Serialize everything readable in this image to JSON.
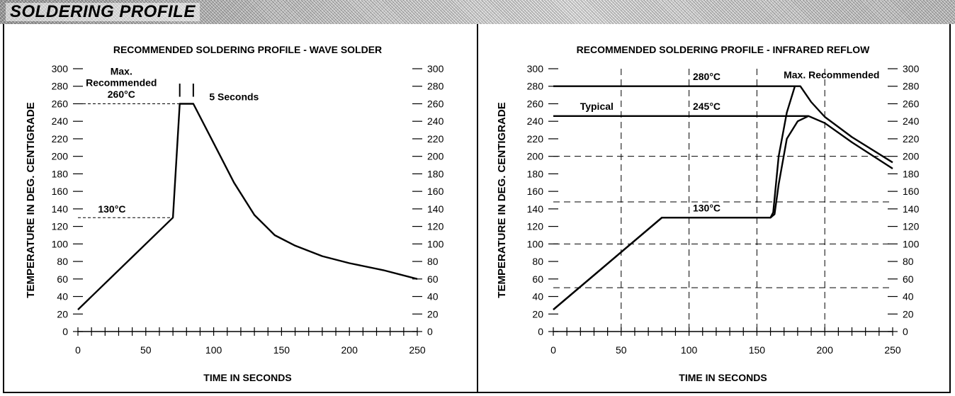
{
  "header": {
    "title": "SOLDERING PROFILE"
  },
  "chart_data": [
    {
      "type": "line",
      "title": "RECOMMENDED SOLDERING PROFILE - WAVE SOLDER",
      "xlabel": "TIME IN SECONDS",
      "ylabel": "TEMPERATURE IN DEG. CENTIGRADE",
      "xlim": [
        0,
        250
      ],
      "ylim": [
        0,
        300
      ],
      "x_ticks": [
        "0",
        "50",
        "100",
        "150",
        "200",
        "250"
      ],
      "y_ticks": [
        "0",
        "20",
        "40",
        "60",
        "80",
        "100",
        "120",
        "140",
        "160",
        "180",
        "200",
        "220",
        "240",
        "260",
        "280",
        "300"
      ],
      "grid": false,
      "series": [
        {
          "values": [
            [
              0,
              25
            ],
            [
              70,
              130
            ],
            [
              75,
              260
            ],
            [
              85,
              260
            ],
            [
              100,
              215
            ],
            [
              115,
              170
            ],
            [
              130,
              133
            ],
            [
              145,
              110
            ],
            [
              160,
              98
            ],
            [
              180,
              86
            ],
            [
              200,
              78
            ],
            [
              225,
              70
            ],
            [
              250,
              60
            ]
          ]
        }
      ],
      "reference_lines": [
        {
          "y": 260,
          "x_end": 75
        },
        {
          "y": 130,
          "x_end": 70
        }
      ],
      "annotations": [
        {
          "text": "Max.",
          "x": 32,
          "y": 293
        },
        {
          "text": "Recommended",
          "x": 32,
          "y": 280
        },
        {
          "text": "260°C",
          "x": 32,
          "y": 267
        },
        {
          "text": "5 Seconds",
          "x": 115,
          "y": 264
        },
        {
          "text": "130°C",
          "x": 25,
          "y": 136
        }
      ]
    },
    {
      "type": "line",
      "title": "RECOMMENDED SOLDERING PROFILE - INFRARED REFLOW",
      "xlabel": "TIME IN SECONDS",
      "ylabel": "TEMPERATURE IN DEG. CENTIGRADE",
      "xlim": [
        0,
        250
      ],
      "ylim": [
        0,
        300
      ],
      "x_ticks": [
        "0",
        "50",
        "100",
        "150",
        "200",
        "250"
      ],
      "y_ticks": [
        "0",
        "20",
        "40",
        "60",
        "80",
        "100",
        "120",
        "140",
        "160",
        "180",
        "200",
        "220",
        "240",
        "260",
        "280",
        "300"
      ],
      "grid": true,
      "grid_x": [
        50,
        100,
        150,
        200
      ],
      "grid_y": [
        50,
        100,
        148,
        200
      ],
      "series": [
        {
          "name": "Max. Recommended",
          "values": [
            [
              0,
              25
            ],
            [
              80,
              130
            ],
            [
              160,
              130
            ],
            [
              162,
              136
            ],
            [
              166,
              200
            ],
            [
              172,
              250
            ],
            [
              178,
              280
            ],
            [
              182,
              280
            ],
            [
              190,
              262
            ],
            [
              200,
              245
            ],
            [
              220,
              222
            ],
            [
              250,
              193
            ]
          ]
        },
        {
          "name": "Typical",
          "values": [
            [
              0,
              25
            ],
            [
              80,
              130
            ],
            [
              160,
              130
            ],
            [
              163,
              134
            ],
            [
              166,
              168
            ],
            [
              172,
              220
            ],
            [
              180,
              240
            ],
            [
              188,
              246
            ],
            [
              200,
              238
            ],
            [
              220,
              216
            ],
            [
              250,
              186
            ]
          ]
        }
      ],
      "reference_lines": [
        {
          "y": 280,
          "x_end": 178
        },
        {
          "y": 246,
          "x_end": 188
        }
      ],
      "annotations": [
        {
          "text": "280°C",
          "x": 113,
          "y": 287
        },
        {
          "text": "Max. Recommended",
          "x": 205,
          "y": 289
        },
        {
          "text": "Typical",
          "x": 32,
          "y": 253
        },
        {
          "text": "245°C",
          "x": 113,
          "y": 253
        },
        {
          "text": "130°C",
          "x": 113,
          "y": 137
        }
      ]
    }
  ]
}
